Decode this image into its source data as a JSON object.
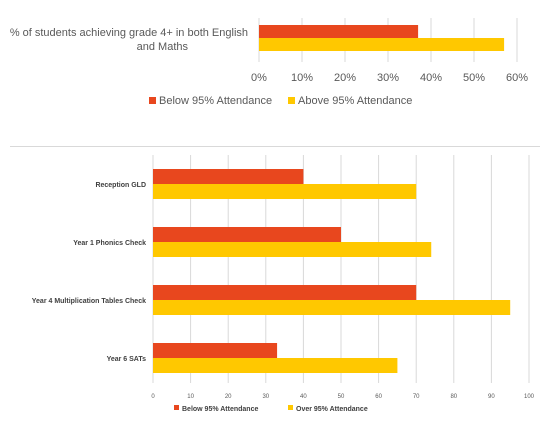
{
  "chart_data": [
    {
      "type": "bar",
      "orientation": "horizontal",
      "categories": [
        "% of students achieving grade 4+ in both English and Maths"
      ],
      "series": [
        {
          "name": "Below 95% Attendance",
          "values": [
            37
          ],
          "color": "#e8471e"
        },
        {
          "name": "Above 95% Attendance",
          "values": [
            57
          ],
          "color": "#ffc800"
        }
      ],
      "xlim": [
        0,
        60
      ],
      "x_ticks": [
        "0%",
        "10%",
        "20%",
        "30%",
        "40%",
        "50%",
        "60%"
      ],
      "grid": true,
      "legend_position": "bottom"
    },
    {
      "type": "bar",
      "orientation": "horizontal",
      "categories": [
        "Reception GLD",
        "Year 1 Phonics Check",
        "Year 4 Multiplication Tables Check",
        "Year 6 SATs"
      ],
      "series": [
        {
          "name": "Below 95% Attendance",
          "values": [
            40,
            50,
            70,
            33
          ],
          "color": "#e8471e"
        },
        {
          "name": "Over 95% Attendance",
          "values": [
            70,
            74,
            95,
            65
          ],
          "color": "#ffc800"
        }
      ],
      "xlim": [
        0,
        100
      ],
      "x_ticks": [
        "0",
        "10",
        "20",
        "30",
        "40",
        "50",
        "60",
        "70",
        "80",
        "90",
        "100"
      ],
      "grid": true,
      "legend_position": "bottom"
    }
  ]
}
